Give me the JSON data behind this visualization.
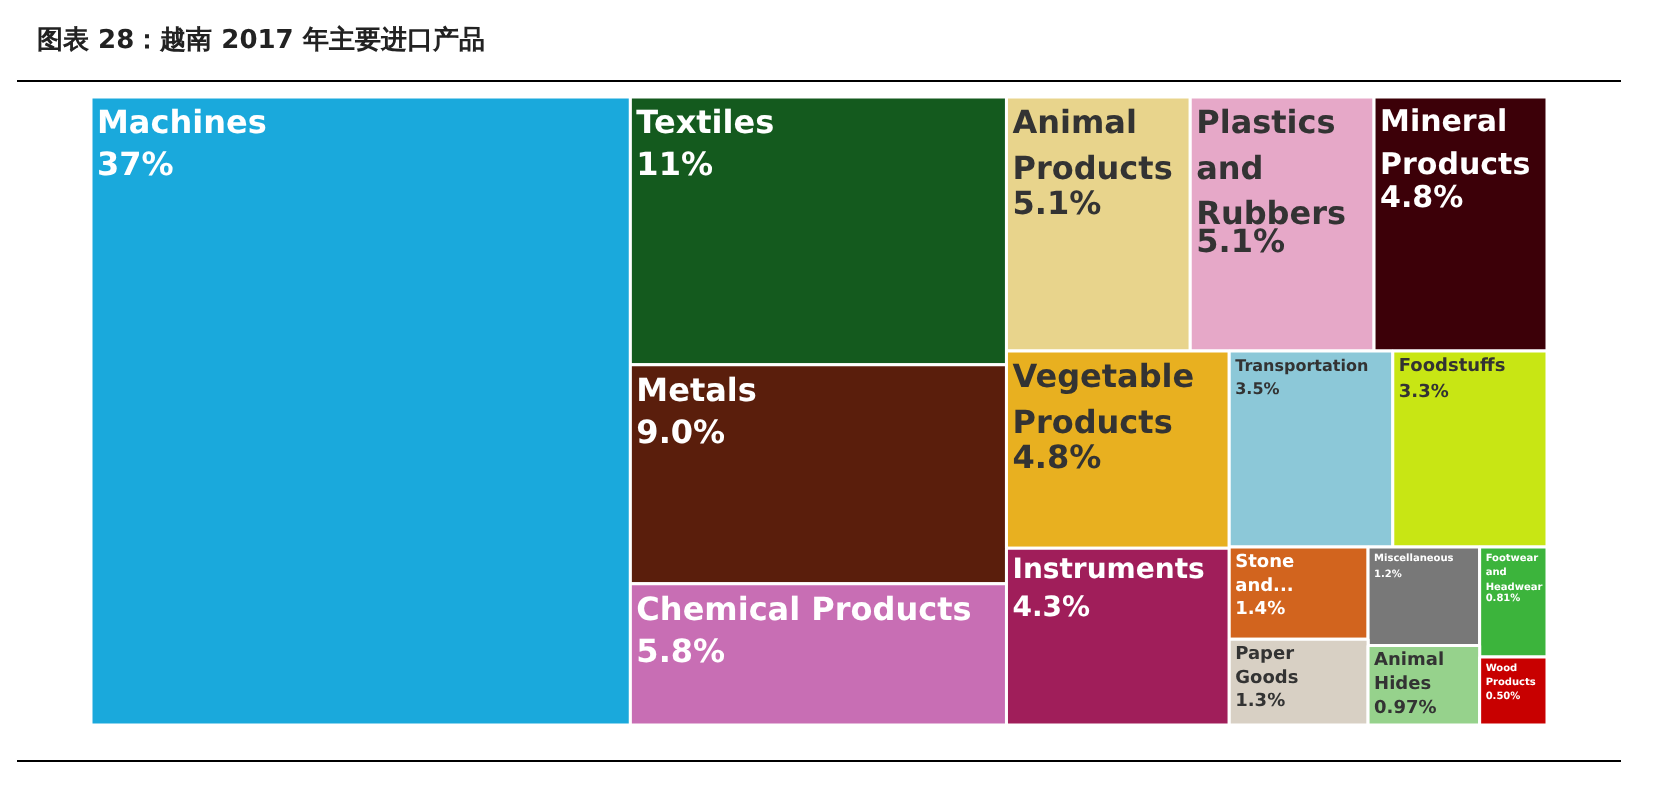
{
  "chart_data": {
    "type": "other",
    "title": "图表 28：越南 2017 年主要进口产品",
    "categories": [
      "Machines",
      "Textiles",
      "Metals",
      "Chemical Products",
      "Animal Products",
      "Plastics and Rubbers",
      "Mineral Products",
      "Vegetable Products",
      "Transportation",
      "Foodstuffs",
      "Instruments",
      "Stone and...",
      "Miscellaneous",
      "Footwear and Headwear",
      "Paper Goods",
      "Animal Hides",
      "Wood Products"
    ],
    "values": [
      37,
      11,
      9.0,
      5.8,
      5.1,
      5.1,
      4.8,
      4.8,
      3.5,
      3.3,
      4.3,
      1.4,
      1.2,
      0.81,
      1.3,
      0.97,
      0.5
    ],
    "value_labels": [
      "37%",
      "11%",
      "9.0%",
      "5.8%",
      "5.1%",
      "5.1%",
      "4.8%",
      "4.8%",
      "3.5%",
      "3.3%",
      "4.3%",
      "1.4%",
      "1.2%",
      "0.81%",
      "1.3%",
      "0.97%",
      "0.50%"
    ],
    "colors": [
      "#1aa9dc",
      "#145a1e",
      "#5a1e0c",
      "#c86eb4",
      "#e8d48c",
      "#e6a8c8",
      "#3c0008",
      "#e8b020",
      "#8cc8d8",
      "#c8e614",
      "#a01e5a",
      "#d2641e",
      "#787878",
      "#3cb43c",
      "#d8d0c4",
      "#96d28c",
      "#c80000"
    ]
  }
}
